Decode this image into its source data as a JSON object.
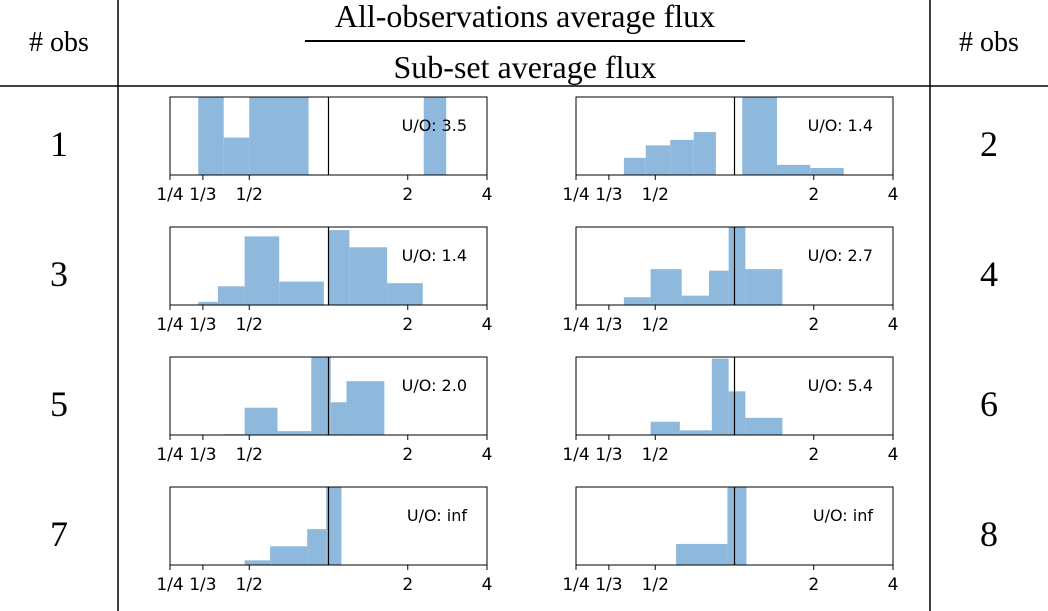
{
  "header": {
    "left_col": "# obs",
    "right_col": "# obs",
    "numerator": "All-observations average flux",
    "denominator": "Sub-set average flux"
  },
  "ratio_label_prefix": "U/O: ",
  "colors": {
    "bar": "#8fb9dc",
    "line": "#000000"
  },
  "chart_data": {
    "type": "bar",
    "scale": "log2",
    "xlim": [
      0.25,
      4
    ],
    "reference_line_x": 1,
    "ticks": [
      {
        "value": 0.25,
        "label": "1/4"
      },
      {
        "value": 0.3333,
        "label": "1/3"
      },
      {
        "value": 0.5,
        "label": "1/2"
      },
      {
        "value": 2,
        "label": "2"
      },
      {
        "value": 4,
        "label": "4"
      }
    ],
    "panels": [
      {
        "obs": "1",
        "ratio": "3.5",
        "bins": [
          [
            0.32,
            0.4,
            1.0
          ],
          [
            0.4,
            0.5,
            0.48
          ],
          [
            0.5,
            0.84,
            1.0
          ],
          [
            2.3,
            2.8,
            1.0
          ]
        ]
      },
      {
        "obs": "2",
        "ratio": "1.4",
        "bins": [
          [
            0.38,
            0.46,
            0.22
          ],
          [
            0.46,
            0.57,
            0.38
          ],
          [
            0.57,
            0.7,
            0.45
          ],
          [
            0.7,
            0.85,
            0.55
          ],
          [
            1.07,
            1.45,
            1.0
          ],
          [
            1.45,
            1.94,
            0.13
          ],
          [
            1.94,
            2.6,
            0.09
          ]
        ]
      },
      {
        "obs": "3",
        "ratio": "1.4",
        "bins": [
          [
            0.32,
            0.38,
            0.04
          ],
          [
            0.38,
            0.48,
            0.24
          ],
          [
            0.48,
            0.65,
            0.88
          ],
          [
            0.65,
            0.96,
            0.3
          ],
          [
            1.0,
            1.2,
            0.96
          ],
          [
            1.2,
            1.67,
            0.74
          ],
          [
            1.67,
            2.28,
            0.28
          ]
        ]
      },
      {
        "obs": "4",
        "ratio": "2.7",
        "bins": [
          [
            0.38,
            0.48,
            0.1
          ],
          [
            0.48,
            0.63,
            0.46
          ],
          [
            0.63,
            0.8,
            0.12
          ],
          [
            0.8,
            0.95,
            0.44
          ],
          [
            0.95,
            1.1,
            1.0
          ],
          [
            1.1,
            1.52,
            0.46
          ]
        ]
      },
      {
        "obs": "5",
        "ratio": "2.0",
        "bins": [
          [
            0.4,
            0.48,
            0.01
          ],
          [
            0.48,
            0.64,
            0.35
          ],
          [
            0.64,
            0.86,
            0.05
          ],
          [
            0.86,
            1.02,
            1.0
          ],
          [
            1.02,
            1.17,
            0.42
          ],
          [
            1.17,
            1.63,
            0.69
          ]
        ]
      },
      {
        "obs": "6",
        "ratio": "5.4",
        "bins": [
          [
            0.48,
            0.62,
            0.17
          ],
          [
            0.62,
            0.82,
            0.06
          ],
          [
            0.82,
            0.95,
            0.98
          ],
          [
            0.95,
            1.1,
            0.56
          ],
          [
            1.1,
            1.52,
            0.22
          ]
        ]
      },
      {
        "obs": "7",
        "ratio": "inf",
        "bins": [
          [
            0.48,
            0.6,
            0.06
          ],
          [
            0.6,
            0.83,
            0.24
          ],
          [
            0.83,
            0.98,
            0.46
          ],
          [
            0.98,
            1.12,
            1.0
          ]
        ]
      },
      {
        "obs": "8",
        "ratio": "inf",
        "bins": [
          [
            0.6,
            0.94,
            0.27
          ],
          [
            0.94,
            1.11,
            1.0
          ]
        ]
      }
    ]
  }
}
